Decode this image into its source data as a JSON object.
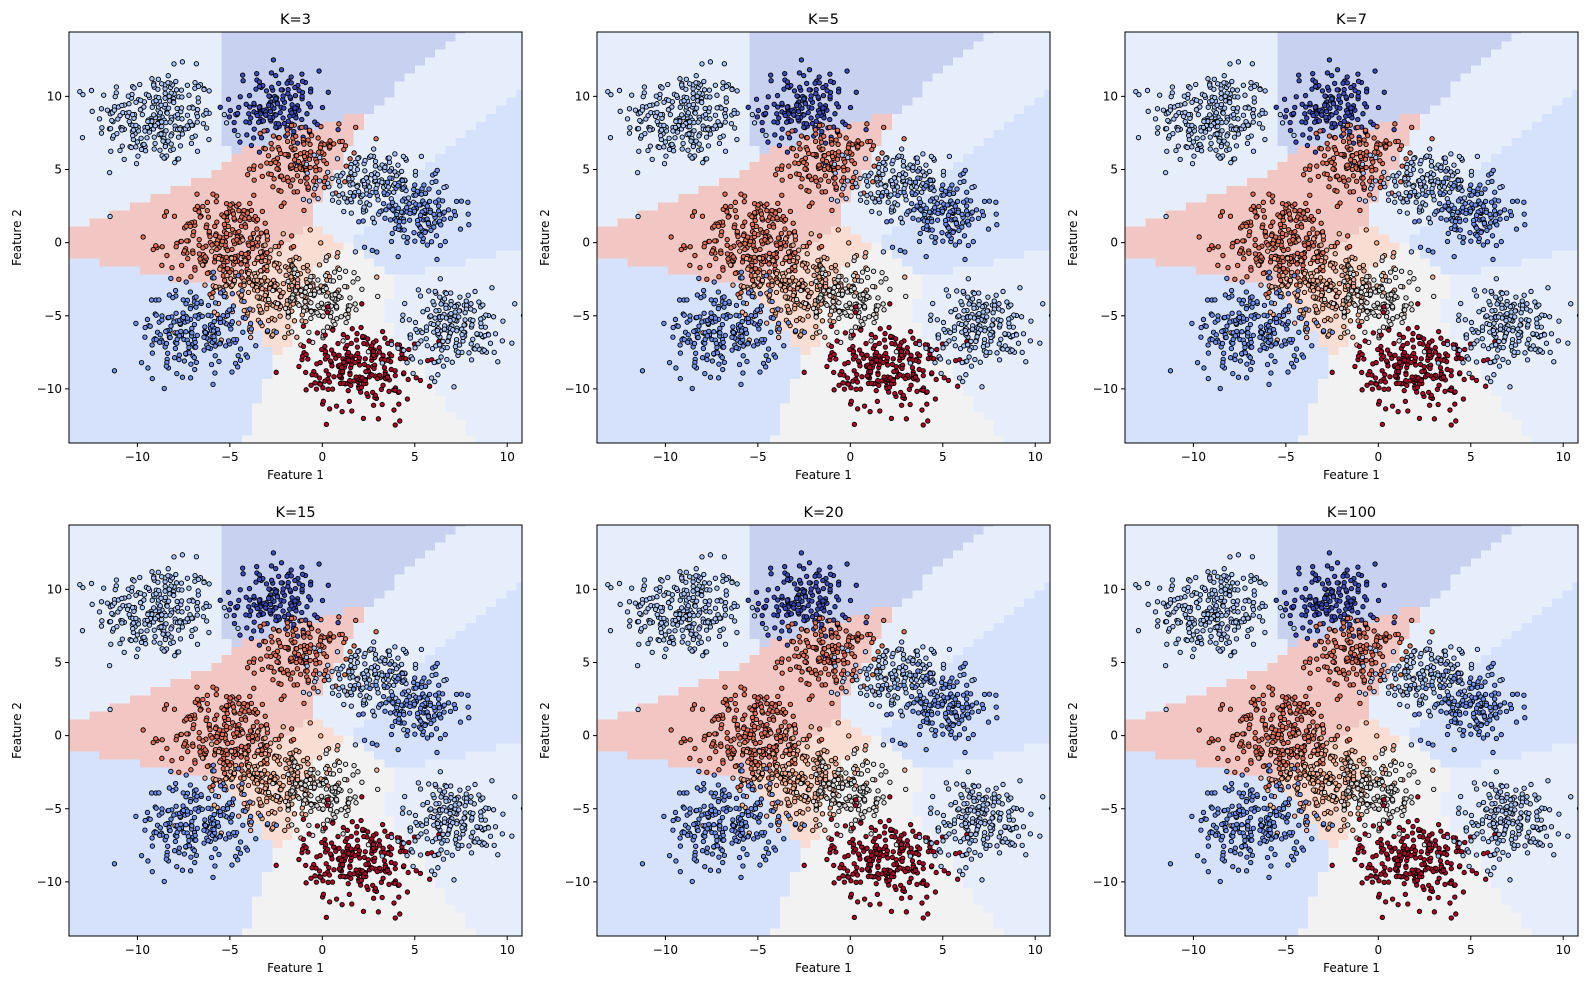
{
  "figure": {
    "background": "#ffffff"
  },
  "palette": {
    "deep_blue": "#3b4cc0",
    "mid_blue": "#6f92f3",
    "light_blue": "#aac7fd",
    "neutral": "#dddddd",
    "light_red": "#f7b093",
    "mid_red": "#e57058",
    "deep_red": "#b40426"
  },
  "region_colors": {
    "deep_blue": "#c9d1f0",
    "mid_blue": "#d6e2fc",
    "light_blue": "#e6eefb",
    "neutral": "#f2f2f2",
    "light_red": "#f9ddd3",
    "mid_red": "#f1c6c3"
  },
  "clusters": [
    {
      "center": [
        -9.0,
        8.5
      ],
      "spread": [
        1.6,
        1.6
      ],
      "n": 260,
      "class": "light_blue"
    },
    {
      "center": [
        -2.5,
        9.2
      ],
      "spread": [
        1.2,
        1.3
      ],
      "n": 160,
      "class": "deep_blue"
    },
    {
      "center": [
        -1.0,
        5.5
      ],
      "spread": [
        1.3,
        1.2
      ],
      "n": 150,
      "class": "mid_red"
    },
    {
      "center": [
        2.5,
        4.0
      ],
      "spread": [
        1.4,
        1.2
      ],
      "n": 150,
      "class": "light_blue"
    },
    {
      "center": [
        5.0,
        2.0
      ],
      "spread": [
        1.3,
        1.2
      ],
      "n": 150,
      "class": "mid_blue"
    },
    {
      "center": [
        -5.0,
        0.0
      ],
      "spread": [
        1.5,
        1.6
      ],
      "n": 260,
      "class": "mid_red"
    },
    {
      "center": [
        -2.5,
        -3.0
      ],
      "spread": [
        1.7,
        1.5
      ],
      "n": 240,
      "class": "light_red"
    },
    {
      "center": [
        0.0,
        -4.0
      ],
      "spread": [
        1.2,
        1.2
      ],
      "n": 120,
      "class": "neutral"
    },
    {
      "center": [
        -6.8,
        -6.0
      ],
      "spread": [
        1.5,
        1.5
      ],
      "n": 220,
      "class": "mid_blue"
    },
    {
      "center": [
        2.0,
        -8.5
      ],
      "spread": [
        1.5,
        1.5
      ],
      "n": 240,
      "class": "deep_red"
    },
    {
      "center": [
        7.0,
        -5.8
      ],
      "spread": [
        1.4,
        1.4
      ],
      "n": 200,
      "class": "light_blue"
    }
  ],
  "chart_data": [
    {
      "type": "scatter",
      "title": "K=3",
      "xlabel": "Feature 1",
      "ylabel": "Feature 2",
      "xlim": [
        -13.7,
        10.8
      ],
      "ylim": [
        -13.7,
        14.4
      ],
      "xticks": [
        -10,
        -5,
        0,
        5,
        10
      ],
      "yticks": [
        -10,
        -5,
        0,
        5,
        10
      ],
      "k": 3
    },
    {
      "type": "scatter",
      "title": "K=5",
      "xlabel": "Feature 1",
      "ylabel": "Feature 2",
      "xlim": [
        -13.7,
        10.8
      ],
      "ylim": [
        -13.7,
        14.4
      ],
      "xticks": [
        -10,
        -5,
        0,
        5,
        10
      ],
      "yticks": [
        -10,
        -5,
        0,
        5,
        10
      ],
      "k": 5
    },
    {
      "type": "scatter",
      "title": "K=7",
      "xlabel": "Feature 1",
      "ylabel": "Feature 2",
      "xlim": [
        -13.7,
        10.8
      ],
      "ylim": [
        -13.7,
        14.4
      ],
      "xticks": [
        -10,
        -5,
        0,
        5,
        10
      ],
      "yticks": [
        -10,
        -5,
        0,
        5,
        10
      ],
      "k": 7
    },
    {
      "type": "scatter",
      "title": "K=15",
      "xlabel": "Feature 1",
      "ylabel": "Feature 2",
      "xlim": [
        -13.7,
        10.8
      ],
      "ylim": [
        -13.7,
        14.4
      ],
      "xticks": [
        -10,
        -5,
        0,
        5,
        10
      ],
      "yticks": [
        -10,
        -5,
        0,
        5,
        10
      ],
      "k": 15
    },
    {
      "type": "scatter",
      "title": "K=20",
      "xlabel": "Feature 1",
      "ylabel": "Feature 2",
      "xlim": [
        -13.7,
        10.8
      ],
      "ylim": [
        -13.7,
        14.4
      ],
      "xticks": [
        -10,
        -5,
        0,
        5,
        10
      ],
      "yticks": [
        -10,
        -5,
        0,
        5,
        10
      ],
      "k": 20
    },
    {
      "type": "scatter",
      "title": "K=100",
      "xlabel": "Feature 1",
      "ylabel": "Feature 2",
      "xlim": [
        -13.7,
        10.8
      ],
      "ylim": [
        -13.7,
        14.4
      ],
      "xticks": [
        -10,
        -5,
        0,
        5,
        10
      ],
      "yticks": [
        -10,
        -5,
        0,
        5,
        10
      ],
      "k": 100
    }
  ]
}
